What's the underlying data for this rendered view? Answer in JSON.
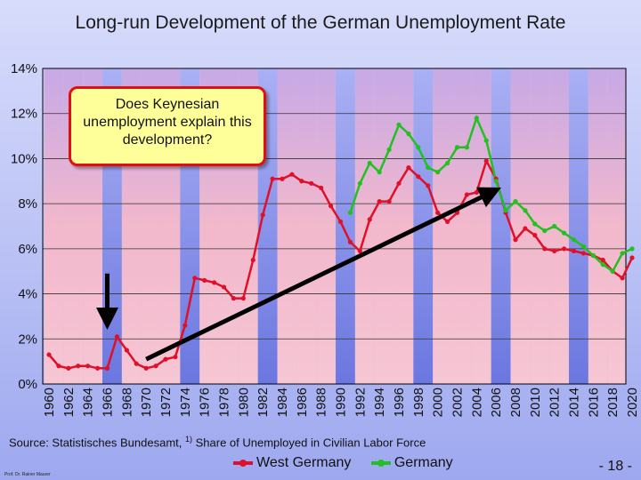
{
  "title": "Long-run Development of the German Unemployment Rate",
  "callout": "Does Keynesian unemployment explain this development?",
  "source_text": "Source: Statistisches Bundesamt, ",
  "source_sup": "1)",
  "source_text2": " Share of Unemployed in Civilian Labor Force",
  "author": "Prof. Dr. Rainer Maurer",
  "page_number": "- 18 -",
  "colors": {
    "west": "#e0102a",
    "germany": "#22c020",
    "arrow": "#000000",
    "bandPink": "#f2b4c8",
    "bandBlue": "#7c86e6",
    "border": "#000000"
  },
  "chart_data": {
    "type": "line",
    "title": "Long-run Development of the German Unemployment Rate",
    "xlabel": "",
    "ylabel": "",
    "ylim": [
      0,
      14
    ],
    "xlim": [
      1960,
      2020
    ],
    "yticks": [
      "0%",
      "2%",
      "4%",
      "6%",
      "8%",
      "10%",
      "12%",
      "14%"
    ],
    "xticks": [
      "1960",
      "1962",
      "1964",
      "1966",
      "1968",
      "1970",
      "1972",
      "1974",
      "1976",
      "1978",
      "1980",
      "1982",
      "1984",
      "1986",
      "1988",
      "1990",
      "1992",
      "1994",
      "1996",
      "1998",
      "2000",
      "2002",
      "2004",
      "2006",
      "2008",
      "2010",
      "2012",
      "2014",
      "2016",
      "2018",
      "2020"
    ],
    "legend_position": "bottom",
    "series": [
      {
        "name": "West Germany",
        "color": "#e0102a",
        "x": [
          1960,
          1961,
          1962,
          1963,
          1964,
          1965,
          1966,
          1967,
          1968,
          1969,
          1970,
          1971,
          1972,
          1973,
          1974,
          1975,
          1976,
          1977,
          1978,
          1979,
          1980,
          1981,
          1982,
          1983,
          1984,
          1985,
          1986,
          1987,
          1988,
          1989,
          1990,
          1991,
          1992,
          1993,
          1994,
          1995,
          1996,
          1997,
          1998,
          1999,
          2000,
          2001,
          2002,
          2003,
          2004,
          2005,
          2006,
          2007,
          2008,
          2009,
          2010,
          2011,
          2012,
          2013,
          2014,
          2015,
          2016,
          2017,
          2018,
          2019,
          2020
        ],
        "values": [
          1.3,
          0.8,
          0.7,
          0.8,
          0.8,
          0.7,
          0.7,
          2.1,
          1.5,
          0.9,
          0.7,
          0.8,
          1.1,
          1.2,
          2.6,
          4.7,
          4.6,
          4.5,
          4.3,
          3.8,
          3.8,
          5.5,
          7.5,
          9.1,
          9.1,
          9.3,
          9.0,
          8.9,
          8.7,
          7.9,
          7.2,
          6.3,
          5.9,
          7.3,
          8.1,
          8.1,
          8.9,
          9.6,
          9.2,
          8.8,
          7.6,
          7.2,
          7.6,
          8.4,
          8.5,
          9.9,
          9.1,
          7.6,
          6.4,
          6.9,
          6.6,
          6.0,
          5.9,
          6.0,
          5.9,
          5.8,
          5.7,
          5.5,
          5.0,
          4.7,
          5.6
        ]
      },
      {
        "name": "Germany",
        "color": "#22c020",
        "x": [
          1991,
          1992,
          1993,
          1994,
          1995,
          1996,
          1997,
          1998,
          1999,
          2000,
          2001,
          2002,
          2003,
          2004,
          2005,
          2006,
          2007,
          2008,
          2009,
          2010,
          2011,
          2012,
          2013,
          2014,
          2015,
          2016,
          2017,
          2018,
          2019,
          2020
        ],
        "values": [
          7.6,
          8.9,
          9.8,
          9.4,
          10.4,
          11.5,
          11.1,
          10.5,
          9.6,
          9.4,
          9.8,
          10.5,
          10.5,
          11.8,
          10.8,
          9.0,
          7.7,
          8.1,
          7.7,
          7.1,
          6.8,
          7.0,
          6.7,
          6.4,
          6.1,
          5.7,
          5.3,
          5.0,
          5.8,
          6.0
        ]
      }
    ],
    "annotations": [
      {
        "type": "arrow",
        "from": [
          1966,
          4.9
        ],
        "to": [
          1966,
          2.9
        ]
      },
      {
        "type": "arrow",
        "from": [
          1970,
          1.1
        ],
        "to": [
          2005.5,
          8.5
        ]
      }
    ]
  }
}
